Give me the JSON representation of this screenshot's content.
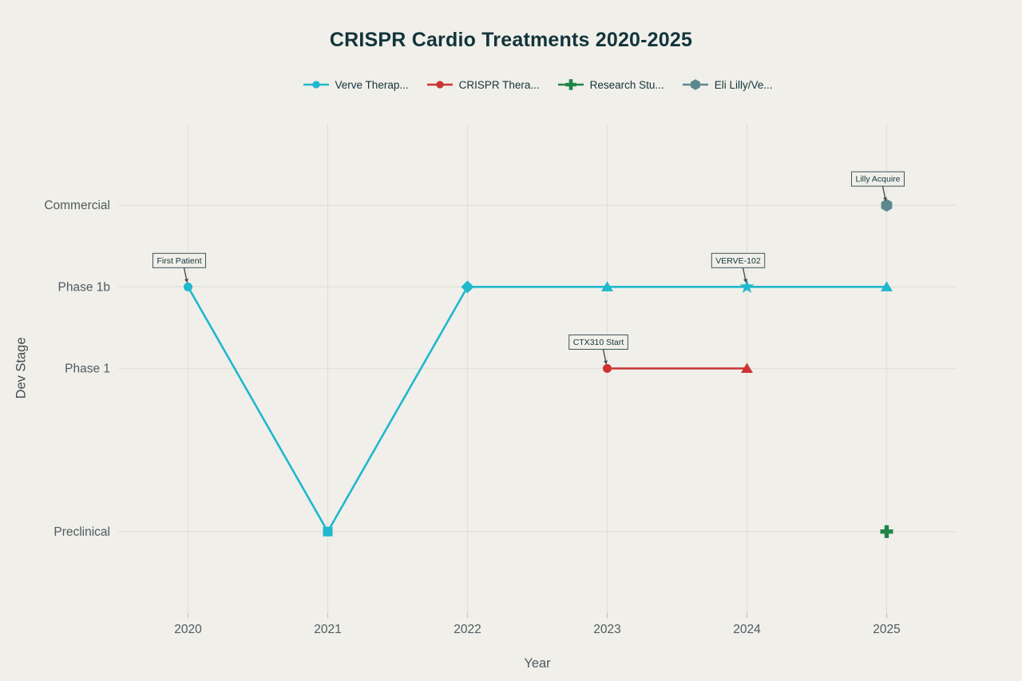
{
  "title": "CRISPR Cardio Treatments 2020-2025",
  "colors": {
    "background": "#F0EFE9",
    "gridline": "#E2E1D9",
    "tick_mark": "#C6C5BB",
    "title_text": "#13343B",
    "axis_text": "#4F5A60",
    "annotation_text": "#13343B",
    "annotation_border": "#42555C",
    "annotation_arrow": "#4A4A4A",
    "verve": "#1FB8CD",
    "crispr": "#CC3333",
    "research": "#1E8449",
    "lilly": "#5D878F"
  },
  "legend": {
    "items": [
      {
        "label": "Verve Therap...",
        "marker": "circle",
        "color": "#1FB8CD"
      },
      {
        "label": "CRISPR Thera...",
        "marker": "circle",
        "color": "#CC3333"
      },
      {
        "label": "Research Stu...",
        "marker": "plus",
        "color": "#1E8449"
      },
      {
        "label": "Eli Lilly/Ve...",
        "marker": "hexagon",
        "color": "#5D878F"
      }
    ]
  },
  "chart_data": {
    "type": "line",
    "title": "CRISPR Cardio Treatments 2020-2025",
    "xlabel": "Year",
    "ylabel": "Dev Stage",
    "x_ticks": [
      2020,
      2021,
      2022,
      2023,
      2024,
      2025
    ],
    "xlim": [
      2019.5,
      2025.5
    ],
    "ylim": [
      0,
      6
    ],
    "grid": true,
    "legend_position": "top-center",
    "stage_levels": {
      "Preclinical": 1,
      "Phase 1": 3,
      "Phase 1b": 4,
      "Commercial": 5
    },
    "y_ticks": [
      {
        "label": "Commercial",
        "value": 5
      },
      {
        "label": "Phase 1b",
        "value": 4
      },
      {
        "label": "Phase 1",
        "value": 3
      },
      {
        "label": "Preclinical",
        "value": 1
      }
    ],
    "series": [
      {
        "name": "Verve Therap...",
        "color": "#1FB8CD",
        "line": true,
        "points": [
          {
            "x": 2020,
            "stage": "Phase 1b",
            "marker": "circle"
          },
          {
            "x": 2021,
            "stage": "Preclinical",
            "marker": "square"
          },
          {
            "x": 2022,
            "stage": "Phase 1b",
            "marker": "diamond"
          },
          {
            "x": 2023,
            "stage": "Phase 1b",
            "marker": "triangle"
          },
          {
            "x": 2024,
            "stage": "Phase 1b",
            "marker": "star"
          },
          {
            "x": 2025,
            "stage": "Phase 1b",
            "marker": "triangle"
          }
        ]
      },
      {
        "name": "CRISPR Thera...",
        "color": "#CC3333",
        "line": true,
        "points": [
          {
            "x": 2023,
            "stage": "Phase 1",
            "marker": "circle"
          },
          {
            "x": 2024,
            "stage": "Phase 1",
            "marker": "triangle"
          }
        ]
      },
      {
        "name": "Research Stu...",
        "color": "#1E8449",
        "line": false,
        "points": [
          {
            "x": 2025,
            "stage": "Preclinical",
            "marker": "plus"
          }
        ]
      },
      {
        "name": "Eli Lilly/Ve...",
        "color": "#5D878F",
        "line": false,
        "points": [
          {
            "x": 2025,
            "stage": "Commercial",
            "marker": "hexagon"
          }
        ]
      }
    ],
    "annotations": [
      {
        "text": "First Patient",
        "x": 2020,
        "stage": "Phase 1b"
      },
      {
        "text": "CTX310 Start",
        "x": 2023,
        "stage": "Phase 1"
      },
      {
        "text": "VERVE-102",
        "x": 2024,
        "stage": "Phase 1b"
      },
      {
        "text": "Lilly Acquire",
        "x": 2025,
        "stage": "Commercial"
      }
    ]
  }
}
